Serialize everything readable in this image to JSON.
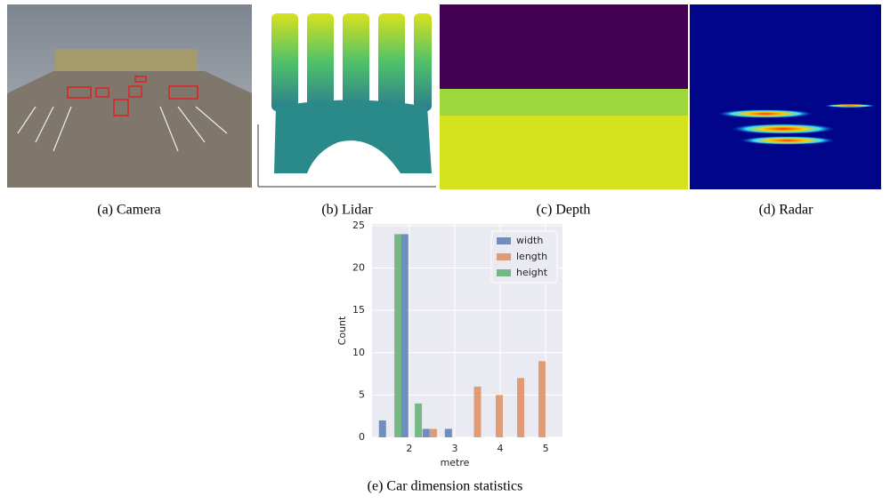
{
  "panels": [
    {
      "caption": "(a) Camera"
    },
    {
      "caption": "(b) Lidar"
    },
    {
      "caption": "(c) Depth"
    },
    {
      "caption": "(d) Radar"
    }
  ],
  "chart_data": {
    "type": "bar",
    "caption": "(e) Car dimension statistics",
    "x_label": "metre",
    "y_label": "Count",
    "series": [
      {
        "name": "width",
        "color": "#4c72b0",
        "x": [
          1.41,
          1.9,
          2.37,
          2.86
        ],
        "values": [
          2,
          24,
          1,
          1
        ]
      },
      {
        "name": "length",
        "color": "#dd8452",
        "x": [
          2.53,
          3.5,
          3.98,
          4.45,
          4.92
        ],
        "values": [
          1,
          6,
          5,
          7,
          9
        ]
      },
      {
        "name": "height",
        "color": "#55a868",
        "x": [
          1.75,
          2.2
        ],
        "values": [
          24,
          4
        ]
      }
    ],
    "xlim": [
      1.18,
      5.37
    ],
    "xticks": [
      2,
      3,
      4,
      5
    ],
    "ylim": [
      0,
      25.2
    ],
    "yticks": [
      0,
      5,
      10,
      15,
      20,
      25
    ],
    "grid": true,
    "legend": "upper right"
  }
}
